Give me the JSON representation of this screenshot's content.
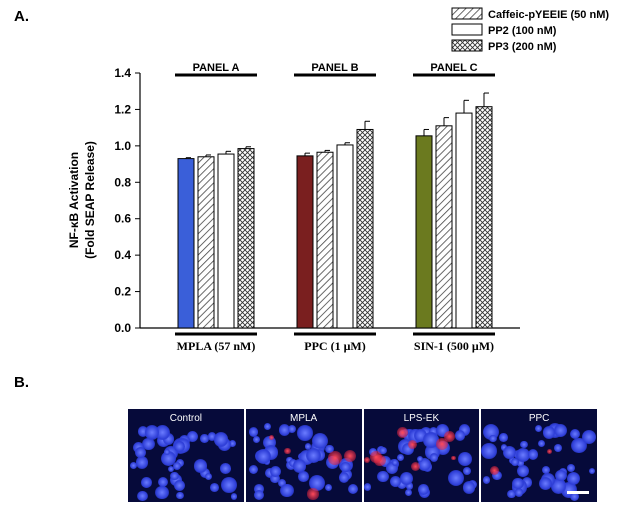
{
  "figure": {
    "label_a": "A.",
    "label_b": "B."
  },
  "chart_data": {
    "type": "bar",
    "ylabel_line1": "NF-κB Activation",
    "ylabel_line2": "(Fold SEAP Release)",
    "ylim": [
      0,
      1.4
    ],
    "yticks": [
      "0.0",
      "0.2",
      "0.4",
      "0.6",
      "0.8",
      "1.0",
      "1.2",
      "1.4"
    ],
    "groups": [
      {
        "panel": "PANEL A",
        "category": "MPLA (57 nM)",
        "color": "#3a5fd9",
        "values": [
          0.93,
          0.94,
          0.955,
          0.985
        ],
        "errors": [
          0.005,
          0.01,
          0.015,
          0.01
        ]
      },
      {
        "panel": "PANEL B",
        "category": "PPC (1 μM)",
        "color": "#7a1f1f",
        "values": [
          0.945,
          0.965,
          1.005,
          1.09
        ],
        "errors": [
          0.015,
          0.01,
          0.012,
          0.045
        ]
      },
      {
        "panel": "PANEL C",
        "category": "SIN-1 (500 μM)",
        "color": "#6b7a1f",
        "values": [
          1.055,
          1.11,
          1.18,
          1.215
        ],
        "errors": [
          0.035,
          0.045,
          0.07,
          0.075
        ]
      }
    ],
    "series_fills": [
      "solid",
      "diagonal",
      "white",
      "crosshatch"
    ],
    "legend": [
      {
        "name": "Caffeic-pYEEIE (50 nM)",
        "fill": "diagonal"
      },
      {
        "name": "PP2 (100 nM)",
        "fill": "white"
      },
      {
        "name": "PP3 (200 nM)",
        "fill": "crosshatch"
      }
    ],
    "legend_position": "top-right",
    "grid": false
  },
  "micrographs": [
    {
      "caption": "Control",
      "red_level": 0.0
    },
    {
      "caption": "MPLA",
      "red_level": 0.5
    },
    {
      "caption": "LPS-EK",
      "red_level": 0.9
    },
    {
      "caption": "PPC",
      "red_level": 0.2
    }
  ]
}
